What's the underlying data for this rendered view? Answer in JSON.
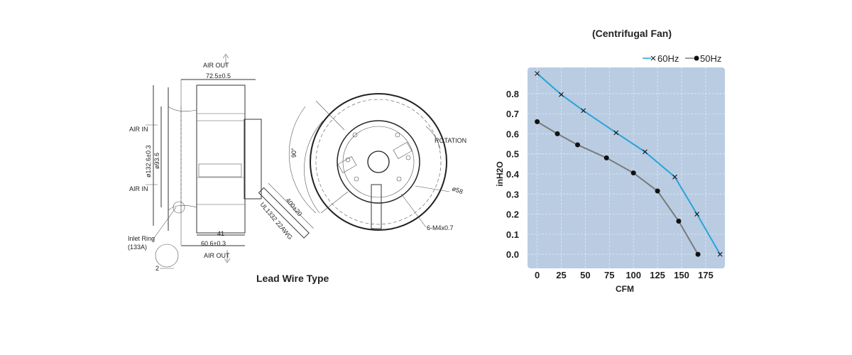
{
  "drawing": {
    "air_out_top": "AIR OUT",
    "air_out_bottom": "AIR OUT",
    "air_in_1": "AIR IN",
    "air_in_2": "AIR IN",
    "dim_width": "72.5±0.5",
    "dim_outer_dia": "ø132.6±0.3",
    "dim_inner_dia": "ø93.6",
    "dim_41": "41",
    "dim_60": "60.6±0.3",
    "dim_2": "2",
    "inlet_ring": "Inlet Ring",
    "inlet_ring_code": "(133A)",
    "lead_length": "400±20",
    "lead_spec": "UL1332 22AWG",
    "angle": "90°",
    "rotation": "ROTATION",
    "dim_58": "ø58",
    "screws": "6-M4x0.7",
    "caption": "Lead Wire Type"
  },
  "chart_data": {
    "type": "line",
    "title": "(Centrifugal Fan)",
    "xlabel": "CFM",
    "ylabel": "inH2O",
    "xlim": [
      -10,
      195
    ],
    "ylim": [
      -0.07,
      0.93
    ],
    "xticks": [
      0,
      25,
      50,
      75,
      100,
      125,
      150,
      175
    ],
    "yticks": [
      0.0,
      0.1,
      0.2,
      0.3,
      0.4,
      0.5,
      0.6,
      0.7,
      0.8
    ],
    "ytick_labels": [
      "0.0",
      "0.1",
      "0.2",
      "0.3",
      "0.4",
      "0.5",
      "0.6",
      "0.7",
      "0.8"
    ],
    "grid": true,
    "legend_position": "top-right",
    "background": "#b9cce2",
    "series": [
      {
        "name": "60Hz",
        "marker": "x",
        "color": "#2aa3d8",
        "x": [
          0,
          25,
          48,
          82,
          112,
          143,
          166,
          190
        ],
        "y": [
          0.9,
          0.795,
          0.715,
          0.605,
          0.51,
          0.385,
          0.2,
          0.0
        ]
      },
      {
        "name": "50Hz",
        "marker": "dot",
        "color": "#7a7a7a",
        "x": [
          0,
          21,
          42,
          72,
          100,
          125,
          147,
          167
        ],
        "y": [
          0.66,
          0.6,
          0.545,
          0.48,
          0.405,
          0.315,
          0.165,
          0.0
        ]
      }
    ]
  }
}
